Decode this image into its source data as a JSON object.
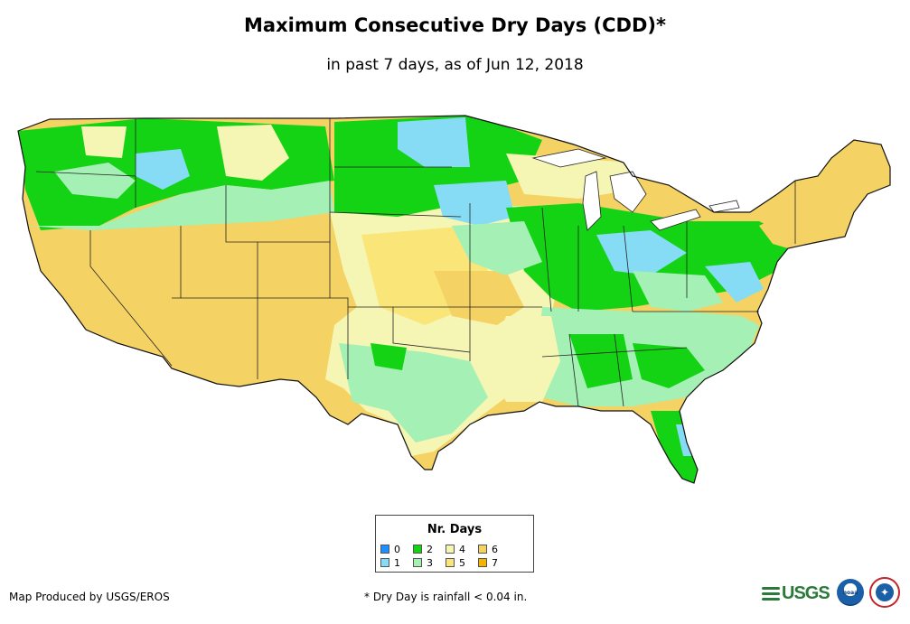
{
  "header": {
    "title": "Maximum Consecutive Dry Days (CDD)*",
    "subtitle": "in past 7 days, as of Jun 12, 2018"
  },
  "legend": {
    "title": "Nr. Days",
    "items": [
      {
        "label": "0",
        "color": "#1e90ff"
      },
      {
        "label": "1",
        "color": "#87dcf5"
      },
      {
        "label": "2",
        "color": "#14d214"
      },
      {
        "label": "3",
        "color": "#a5f0b4"
      },
      {
        "label": "4",
        "color": "#f5f5b4"
      },
      {
        "label": "5",
        "color": "#fae678"
      },
      {
        "label": "6",
        "color": "#f5d264"
      },
      {
        "label": "7",
        "color": "#f5b400"
      }
    ]
  },
  "footer": {
    "credit": "Map Produced by USGS/EROS",
    "footnote": "* Dry Day is rainfall < 0.04 in."
  },
  "logos": {
    "usgs": "USGS",
    "noaa": "noaa"
  },
  "map_data": {
    "region": "Contiguous United States",
    "dominant_classes": {
      "west_southwest": "6",
      "northeast": "6",
      "pacific_northwest": "2",
      "northern_plains": "2",
      "ohio_valley_midwest": "2",
      "florida_gulf_coast": "2"
    }
  }
}
